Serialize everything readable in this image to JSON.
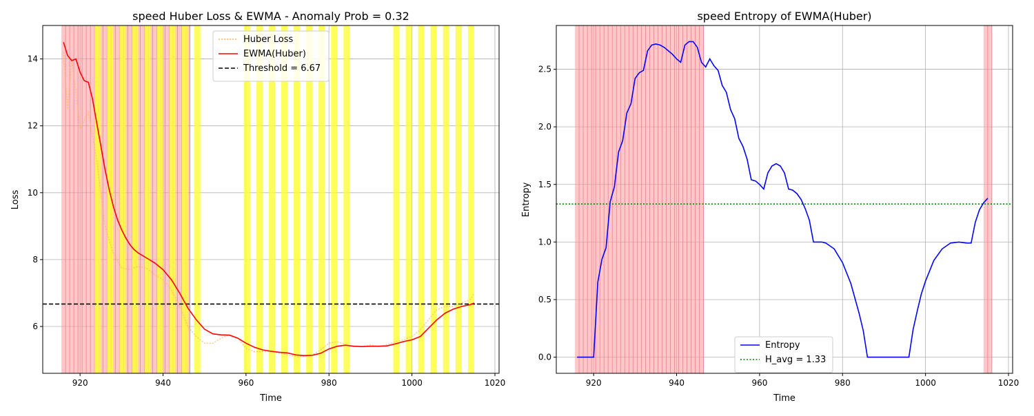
{
  "colors": {
    "red_band": "#ff9999",
    "yellow_band": "#ffff33",
    "huber_line": "#ffb560",
    "ewma_line": "#ff0000",
    "threshold_line": "#000000",
    "entropy_line": "#0000ff",
    "havg_line": "#008000",
    "grid": "#b0b0b0"
  },
  "chart_data": [
    {
      "type": "line",
      "title": "speed Huber Loss & EWMA - Anomaly Prob = 0.32",
      "xlabel": "Time",
      "ylabel": "Loss",
      "xlim": [
        911,
        1021
      ],
      "ylim": [
        4.6,
        15.0
      ],
      "xticks": [
        920,
        940,
        960,
        980,
        1000,
        1020
      ],
      "yticks": [
        6,
        8,
        10,
        12,
        14
      ],
      "grid": true,
      "legend": {
        "position": "top-center",
        "entries": [
          "Huber Loss",
          "EWMA(Huber)",
          "Threshold = 6.67"
        ]
      },
      "threshold": 6.67,
      "red_bands_range": [
        916,
        946
      ],
      "yellow_bands": [
        [
          923.5,
          925
        ],
        [
          926.5,
          928
        ],
        [
          929.5,
          931
        ],
        [
          932.5,
          934
        ],
        [
          935.5,
          937
        ],
        [
          938.5,
          940
        ],
        [
          941.5,
          943
        ],
        [
          944.5,
          946
        ],
        [
          947.5,
          949
        ],
        [
          959.5,
          961
        ],
        [
          962.5,
          964
        ],
        [
          965.5,
          967
        ],
        [
          968.5,
          970
        ],
        [
          971.5,
          973
        ],
        [
          974.5,
          976
        ],
        [
          977.5,
          979
        ],
        [
          980.5,
          982
        ],
        [
          983.5,
          985
        ],
        [
          995.5,
          997
        ],
        [
          998.5,
          1000
        ],
        [
          1001.5,
          1003
        ],
        [
          1004.5,
          1006
        ],
        [
          1007.5,
          1009
        ],
        [
          1010.5,
          1012
        ],
        [
          1013.5,
          1015
        ]
      ],
      "series": [
        {
          "name": "Huber Loss",
          "x": [
            916,
            917,
            918,
            919,
            920,
            922,
            924,
            926,
            928,
            930,
            932,
            934,
            936,
            938,
            940,
            942,
            944,
            946,
            948,
            950,
            952,
            954,
            956,
            958,
            960,
            962,
            964,
            966,
            968,
            970,
            972,
            974,
            976,
            978,
            980,
            982,
            984,
            986,
            988,
            990,
            992,
            994,
            996,
            998,
            1000,
            1002,
            1004,
            1006,
            1008,
            1010,
            1012,
            1014,
            1015
          ],
          "y": [
            14.2,
            12.5,
            14.0,
            13.0,
            11.9,
            12.4,
            11.0,
            9.0,
            8.2,
            7.75,
            7.7,
            7.8,
            7.75,
            7.55,
            7.4,
            7.1,
            6.6,
            6.0,
            5.7,
            5.5,
            5.5,
            5.65,
            5.75,
            5.65,
            5.35,
            5.25,
            5.25,
            5.25,
            5.2,
            5.15,
            5.1,
            5.1,
            5.15,
            5.3,
            5.5,
            5.55,
            5.45,
            5.4,
            5.4,
            5.45,
            5.4,
            5.45,
            5.55,
            5.6,
            5.7,
            5.9,
            6.2,
            6.5,
            6.6,
            6.6,
            6.7,
            6.8,
            7.0
          ]
        },
        {
          "name": "EWMA(Huber)",
          "x": [
            916,
            917,
            918,
            919,
            920,
            921,
            922,
            923,
            924,
            925,
            926,
            927,
            928,
            929,
            930,
            931,
            932,
            933,
            934,
            936,
            938,
            940,
            942,
            944,
            946,
            948,
            950,
            952,
            954,
            956,
            958,
            960,
            962,
            964,
            966,
            968,
            970,
            972,
            974,
            976,
            978,
            980,
            982,
            984,
            986,
            988,
            990,
            992,
            994,
            996,
            998,
            1000,
            1002,
            1004,
            1006,
            1008,
            1010,
            1012,
            1014,
            1015
          ],
          "y": [
            14.5,
            14.1,
            13.95,
            14.0,
            13.6,
            13.35,
            13.3,
            12.8,
            12.1,
            11.4,
            10.7,
            10.1,
            9.6,
            9.2,
            8.9,
            8.65,
            8.45,
            8.3,
            8.2,
            8.05,
            7.9,
            7.7,
            7.4,
            7.0,
            6.55,
            6.2,
            5.92,
            5.78,
            5.75,
            5.74,
            5.65,
            5.5,
            5.38,
            5.3,
            5.26,
            5.23,
            5.21,
            5.15,
            5.13,
            5.14,
            5.2,
            5.33,
            5.41,
            5.44,
            5.41,
            5.4,
            5.41,
            5.41,
            5.42,
            5.48,
            5.55,
            5.6,
            5.7,
            5.95,
            6.2,
            6.4,
            6.52,
            6.6,
            6.65,
            6.7
          ]
        }
      ]
    },
    {
      "type": "line",
      "title": "speed Entropy of EWMA(Huber)",
      "xlabel": "Time",
      "ylabel": "Entropy",
      "xlim": [
        911,
        1021
      ],
      "ylim": [
        -0.14,
        2.88
      ],
      "xticks": [
        920,
        940,
        960,
        980,
        1000,
        1020
      ],
      "yticks": [
        0.0,
        0.5,
        1.0,
        1.5,
        2.0,
        2.5
      ],
      "grid": true,
      "legend": {
        "position": "lower-center",
        "entries": [
          "Entropy",
          "H_avg = 1.33"
        ]
      },
      "h_avg": 1.33,
      "red_bands_ranges": [
        [
          916,
          946
        ],
        [
          1014.5,
          1015.5
        ]
      ],
      "series": [
        {
          "name": "Entropy",
          "x": [
            916,
            917,
            918,
            919,
            920,
            921,
            922,
            923,
            924,
            925,
            926,
            927,
            928,
            929,
            930,
            931,
            932,
            933,
            934,
            935,
            936,
            937,
            938,
            939,
            940,
            941,
            942,
            943,
            944,
            945,
            946,
            947,
            948,
            949,
            950,
            951,
            952,
            953,
            954,
            955,
            956,
            957,
            958,
            959,
            960,
            961,
            962,
            963,
            964,
            965,
            966,
            967,
            968,
            969,
            970,
            971,
            972,
            973,
            974,
            975,
            976,
            978,
            980,
            982,
            984,
            985,
            986,
            987,
            988,
            990,
            992,
            994,
            996,
            997,
            998,
            999,
            1000,
            1002,
            1004,
            1006,
            1008,
            1010,
            1011,
            1012,
            1013,
            1014,
            1015
          ],
          "y": [
            0.0,
            0.0,
            0.0,
            0.0,
            0.0,
            0.65,
            0.85,
            0.95,
            1.35,
            1.48,
            1.78,
            1.88,
            2.12,
            2.2,
            2.42,
            2.47,
            2.49,
            2.66,
            2.71,
            2.72,
            2.71,
            2.69,
            2.66,
            2.63,
            2.59,
            2.56,
            2.71,
            2.74,
            2.74,
            2.69,
            2.56,
            2.52,
            2.59,
            2.53,
            2.49,
            2.36,
            2.3,
            2.15,
            2.07,
            1.9,
            1.83,
            1.72,
            1.54,
            1.53,
            1.5,
            1.46,
            1.6,
            1.66,
            1.68,
            1.66,
            1.6,
            1.46,
            1.45,
            1.42,
            1.37,
            1.29,
            1.19,
            1.0,
            1.0,
            1.0,
            0.99,
            0.94,
            0.82,
            0.64,
            0.38,
            0.23,
            0.0,
            0.0,
            0.0,
            0.0,
            0.0,
            0.0,
            0.0,
            0.24,
            0.4,
            0.55,
            0.66,
            0.84,
            0.94,
            0.99,
            1.0,
            0.99,
            0.99,
            1.17,
            1.28,
            1.34,
            1.38
          ]
        }
      ]
    }
  ]
}
